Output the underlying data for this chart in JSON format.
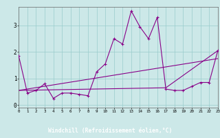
{
  "xlabel": "Windchill (Refroidissement éolien,°C)",
  "bg_color": "#cce8e8",
  "line_color": "#880088",
  "grid_color": "#99cccc",
  "axis_bg": "#440044",
  "xticks": [
    0,
    1,
    2,
    3,
    4,
    5,
    6,
    7,
    8,
    9,
    10,
    11,
    12,
    13,
    14,
    15,
    16,
    17,
    18,
    19,
    20,
    21,
    22,
    23
  ],
  "yticks": [
    0,
    1,
    2,
    3
  ],
  "xlim": [
    0,
    23
  ],
  "ylim": [
    -0.1,
    3.7
  ],
  "jagged_x": [
    0,
    1,
    2,
    3,
    4,
    5,
    6,
    7,
    8,
    9,
    10,
    11,
    12,
    13,
    14,
    15,
    16,
    17,
    18,
    19,
    20,
    21,
    22,
    23
  ],
  "jagged_y": [
    1.85,
    0.45,
    0.55,
    0.8,
    0.25,
    0.45,
    0.45,
    0.4,
    0.35,
    1.25,
    1.55,
    2.5,
    2.3,
    3.55,
    2.95,
    2.5,
    3.3,
    0.6,
    0.55,
    0.55,
    0.7,
    0.85,
    0.85,
    2.05
  ],
  "trend1_x": [
    0,
    23
  ],
  "trend1_y": [
    0.55,
    1.75
  ],
  "trend2_x": [
    0,
    17,
    23
  ],
  "trend2_y": [
    0.55,
    0.65,
    2.05
  ]
}
